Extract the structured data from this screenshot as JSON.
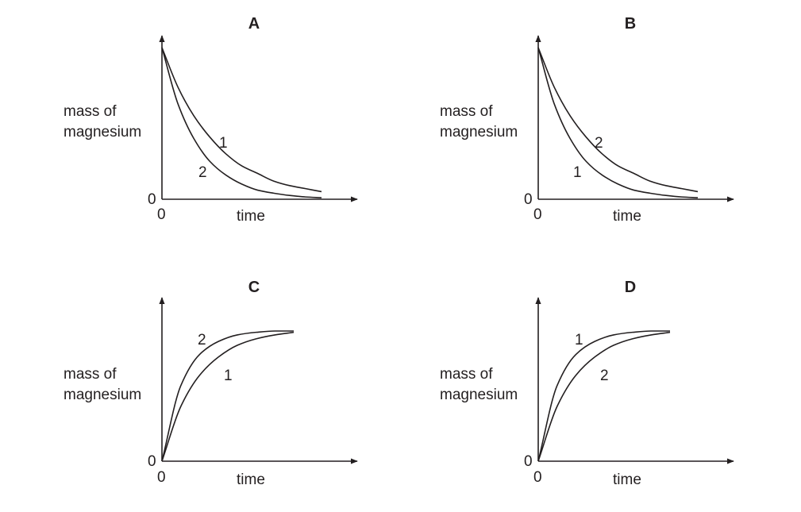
{
  "chart_data": [
    {
      "type": "line",
      "panel": "A",
      "xlabel": "time",
      "ylabel": "mass of magnesium",
      "x_origin": "0",
      "y_origin": "0",
      "trend": "decreasing",
      "series": [
        {
          "name": "1",
          "x": [
            0,
            1,
            2,
            3,
            4,
            5,
            6,
            7,
            8,
            9,
            10
          ],
          "values": [
            10,
            7.4,
            5.5,
            4.1,
            3.0,
            2.2,
            1.7,
            1.2,
            0.9,
            0.7,
            0.5
          ]
        },
        {
          "name": "2",
          "x": [
            0,
            1,
            2,
            3,
            4,
            5,
            6,
            7,
            8,
            9,
            10
          ],
          "values": [
            10,
            6.3,
            4.0,
            2.5,
            1.6,
            1.0,
            0.6,
            0.4,
            0.25,
            0.15,
            0.1
          ]
        }
      ]
    },
    {
      "type": "line",
      "panel": "B",
      "xlabel": "time",
      "ylabel": "mass of magnesium",
      "x_origin": "0",
      "y_origin": "0",
      "trend": "decreasing",
      "series": [
        {
          "name": "2",
          "x": [
            0,
            1,
            2,
            3,
            4,
            5,
            6,
            7,
            8,
            9,
            10
          ],
          "values": [
            10,
            7.4,
            5.5,
            4.1,
            3.0,
            2.2,
            1.7,
            1.2,
            0.9,
            0.7,
            0.5
          ]
        },
        {
          "name": "1",
          "x": [
            0,
            1,
            2,
            3,
            4,
            5,
            6,
            7,
            8,
            9,
            10
          ],
          "values": [
            10,
            6.3,
            4.0,
            2.5,
            1.6,
            1.0,
            0.6,
            0.4,
            0.25,
            0.15,
            0.1
          ]
        }
      ]
    },
    {
      "type": "line",
      "panel": "C",
      "xlabel": "time",
      "ylabel": "mass of magnesium",
      "x_origin": "0",
      "y_origin": "0",
      "trend": "increasing",
      "series": [
        {
          "name": "2",
          "x": [
            0,
            1,
            2,
            3,
            4,
            5,
            6,
            7
          ],
          "values": [
            0,
            5.8,
            8.2,
            9.2,
            9.7,
            9.9,
            10,
            10
          ]
        },
        {
          "name": "1",
          "x": [
            0,
            1,
            2,
            3,
            4,
            5,
            6,
            7
          ],
          "values": [
            0,
            4.2,
            6.6,
            8.0,
            8.9,
            9.4,
            9.7,
            9.9
          ]
        }
      ]
    },
    {
      "type": "line",
      "panel": "D",
      "xlabel": "time",
      "ylabel": "mass of magnesium",
      "x_origin": "0",
      "y_origin": "0",
      "trend": "increasing",
      "series": [
        {
          "name": "1",
          "x": [
            0,
            1,
            2,
            3,
            4,
            5,
            6,
            7
          ],
          "values": [
            0,
            5.8,
            8.2,
            9.2,
            9.7,
            9.9,
            10,
            10
          ]
        },
        {
          "name": "2",
          "x": [
            0,
            1,
            2,
            3,
            4,
            5,
            6,
            7
          ],
          "values": [
            0,
            4.2,
            6.6,
            8.0,
            8.9,
            9.4,
            9.7,
            9.9
          ]
        }
      ]
    }
  ],
  "ylabel_lines": [
    "mass of",
    "magnesium"
  ],
  "colors": {
    "ink": "#231f20",
    "background": "#ffffff"
  }
}
